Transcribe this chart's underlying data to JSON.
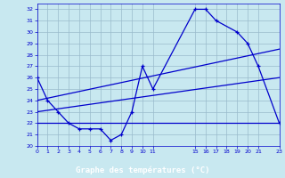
{
  "bg_color": "#c8e8f0",
  "plot_bg_color": "#c8e8f0",
  "grid_color": "#99bbcc",
  "line_color": "#0000cc",
  "xlabel": "Graphe des températures (°C)",
  "xlabel_bg": "#0000aa",
  "xlabel_color": "#ffffff",
  "xlim": [
    0,
    23
  ],
  "ylim": [
    20,
    32.5
  ],
  "xticks": [
    0,
    1,
    2,
    3,
    4,
    5,
    6,
    7,
    8,
    9,
    10,
    11,
    15,
    16,
    17,
    18,
    19,
    20,
    21,
    23
  ],
  "yticks": [
    20,
    21,
    22,
    23,
    24,
    25,
    26,
    27,
    28,
    29,
    30,
    31,
    32
  ],
  "main_x": [
    0,
    1,
    2,
    3,
    4,
    5,
    6,
    7,
    8,
    9,
    10,
    11,
    15,
    16,
    17,
    19,
    20,
    21,
    23
  ],
  "main_y": [
    26,
    24,
    23,
    22,
    21.5,
    21.5,
    21.5,
    20.5,
    21,
    23,
    27,
    25,
    32,
    32,
    31,
    30,
    29,
    27,
    22
  ],
  "trend1_x": [
    0,
    23
  ],
  "trend1_y": [
    24.0,
    28.5
  ],
  "trend2_x": [
    0,
    23
  ],
  "trend2_y": [
    23.0,
    26.0
  ],
  "trend3_x": [
    0,
    10,
    23
  ],
  "trend3_y": [
    22.0,
    22.0,
    22.0
  ]
}
